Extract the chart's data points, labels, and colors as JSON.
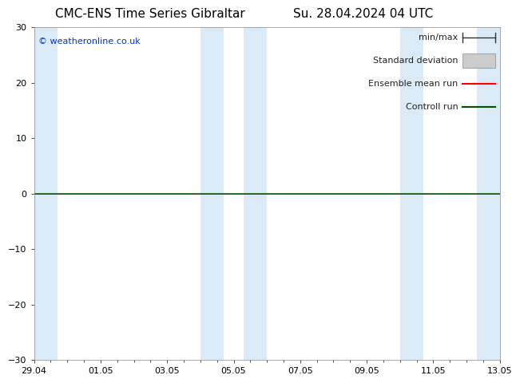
{
  "title_left": "CMC-ENS Time Series Gibraltar",
  "title_right": "Su. 28.04.2024 04 UTC",
  "watermark": "© weatheronline.co.uk",
  "ylim": [
    -30,
    30
  ],
  "yticks": [
    -30,
    -20,
    -10,
    0,
    10,
    20,
    30
  ],
  "xtick_labels": [
    "29.04",
    "01.05",
    "03.05",
    "05.05",
    "07.05",
    "09.05",
    "11.05",
    "13.05"
  ],
  "xtick_positions": [
    0,
    2,
    4,
    6,
    8,
    10,
    12,
    14
  ],
  "x_total_days": 14,
  "background_color": "#ffffff",
  "plot_bg_color": "#ffffff",
  "shaded_bands": [
    {
      "x_start": 0.0,
      "x_end": 0.7
    },
    {
      "x_start": 5.0,
      "x_end": 5.7
    },
    {
      "x_start": 6.3,
      "x_end": 7.0
    },
    {
      "x_start": 11.0,
      "x_end": 11.7
    },
    {
      "x_start": 13.3,
      "x_end": 14.0
    }
  ],
  "shade_color": "#daeaf7",
  "zero_line_color": "#005000",
  "legend_items": [
    {
      "label": "min/max",
      "color": "#333333",
      "style": "errbar"
    },
    {
      "label": "Standard deviation",
      "color": "#cccccc",
      "style": "box"
    },
    {
      "label": "Ensemble mean run",
      "color": "#ff0000",
      "style": "line"
    },
    {
      "label": "Controll run",
      "color": "#005000",
      "style": "line"
    }
  ],
  "title_fontsize": 11,
  "tick_fontsize": 8,
  "legend_fontsize": 8,
  "watermark_color": "#0033cc",
  "watermark_fontsize": 8
}
